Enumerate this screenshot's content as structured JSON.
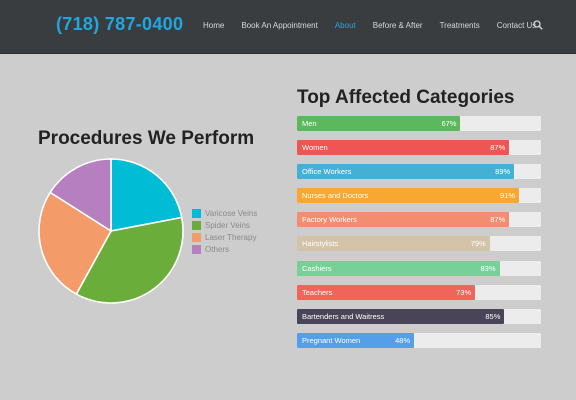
{
  "header": {
    "phone": "(718) 787-0400",
    "nav": [
      "Home",
      "Book An Appointment",
      "About",
      "Before & After",
      "Treatments",
      "Contact Us"
    ],
    "active_nav": "About"
  },
  "procedures": {
    "title": "Procedures We Perform",
    "chart_data": {
      "type": "pie",
      "categories": [
        "Varicose Veins",
        "Spider Veins",
        "Laser Therapy",
        "Others"
      ],
      "values": [
        22,
        36,
        26,
        16
      ],
      "colors": [
        "#00bcd4",
        "#6aad3b",
        "#f49b6a",
        "#b57fc0"
      ]
    }
  },
  "categories": {
    "title": "Top Affected Categories",
    "chart_data": {
      "type": "bar",
      "orientation": "horizontal",
      "items": [
        {
          "label": "Men",
          "value": 67,
          "color": "#5cb85c"
        },
        {
          "label": "Women",
          "value": 87,
          "color": "#ef5552"
        },
        {
          "label": "Office Workers",
          "value": 89,
          "color": "#45b0d6"
        },
        {
          "label": "Nurses and Doctors",
          "value": 91,
          "color": "#f7a830"
        },
        {
          "label": "Factory Workers",
          "value": 87,
          "color": "#f28e6f"
        },
        {
          "label": "Hairstylists",
          "value": 79,
          "color": "#d2c3a9"
        },
        {
          "label": "Cashiers",
          "value": 83,
          "color": "#77d097"
        },
        {
          "label": "Teachers",
          "value": 73,
          "color": "#f0645a"
        },
        {
          "label": "Bartenders and Waitress",
          "value": 85,
          "color": "#4a4458"
        },
        {
          "label": "Pregnant Women",
          "value": 48,
          "color": "#559fe8"
        }
      ]
    }
  }
}
